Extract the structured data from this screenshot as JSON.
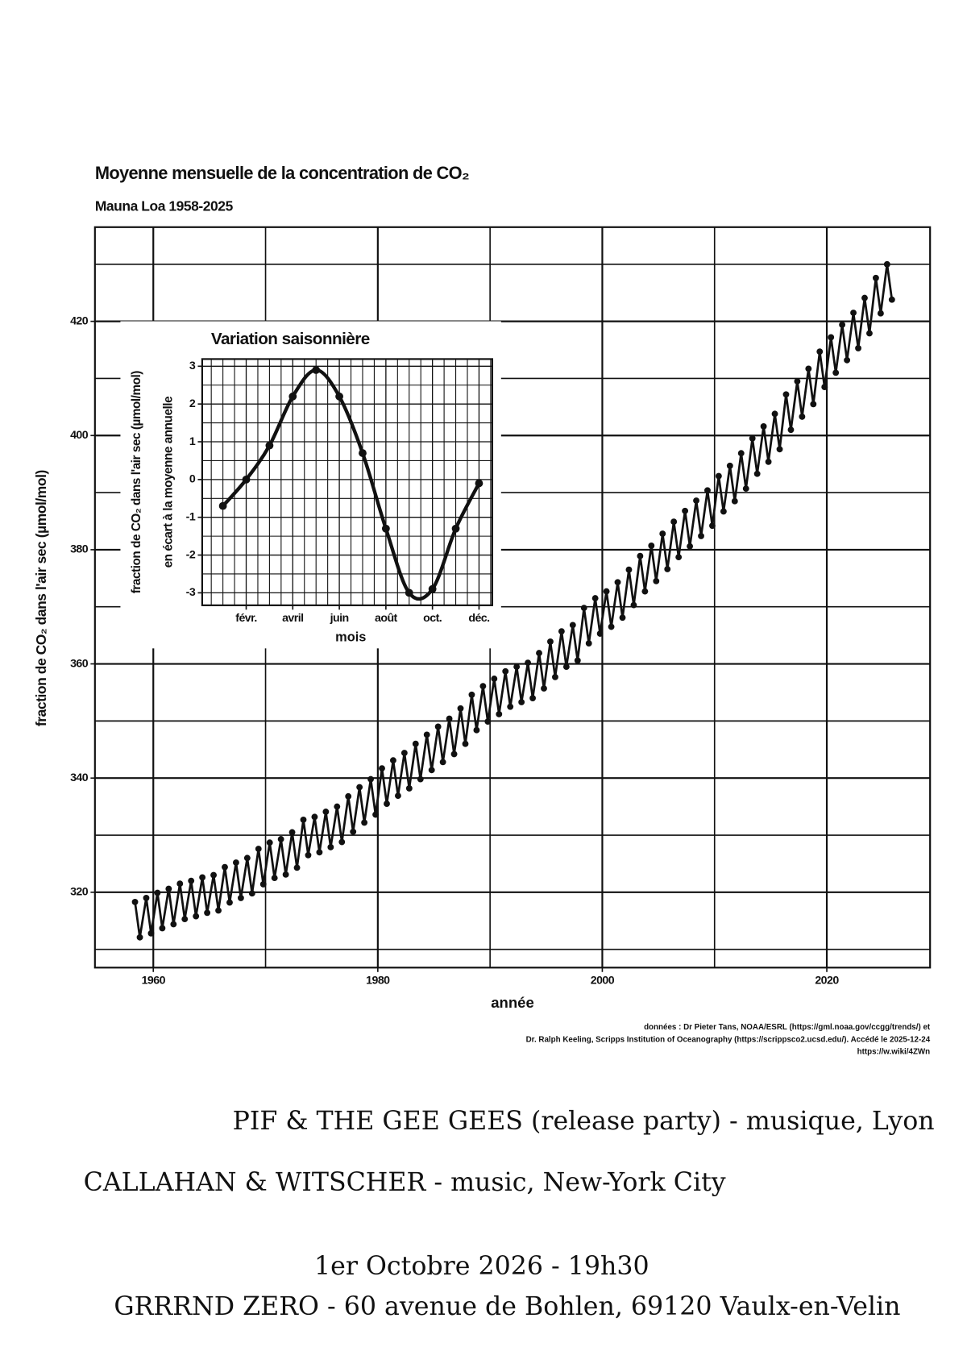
{
  "chart_data": [
    {
      "type": "line",
      "title": "Moyenne mensuelle de la concentration de CO₂",
      "subtitle": "Mauna Loa 1958-2025",
      "x_label": "année",
      "y_label": "fraction de CO₂ dans l'air sec (µmol/mol)",
      "source": [
        "données : Dr Pieter Tans, NOAA/ESRL (https://gml.noaa.gov/ccgg/trends/) et",
        "Dr. Ralph Keeling, Scripps Institution of Oceanography (https://scrippsco2.ucsd.edu/). Accédé le 2025-12-24",
        "https://w.wiki/4ZWn"
      ],
      "xlim": [
        1954.8,
        2029.2
      ],
      "ylim": [
        306.8,
        436.5
      ],
      "xticks": [
        1960,
        1980,
        2000,
        2020
      ],
      "yticks": [
        320,
        340,
        360,
        380,
        400,
        420
      ],
      "xminor": [
        1970,
        1990,
        2010
      ],
      "yminor": [
        310,
        330,
        350,
        370,
        390,
        410,
        430
      ],
      "grid": true,
      "markers": true,
      "series": [
        {
          "color": "#111111",
          "x": [
            1958.37,
            1958.8,
            1959.37,
            1959.8,
            1960.37,
            1960.8,
            1961.37,
            1961.8,
            1962.37,
            1962.8,
            1963.37,
            1963.8,
            1964.37,
            1964.8,
            1965.37,
            1965.8,
            1966.37,
            1966.8,
            1967.37,
            1967.8,
            1968.37,
            1968.8,
            1969.37,
            1969.8,
            1970.37,
            1970.8,
            1971.37,
            1971.8,
            1972.37,
            1972.8,
            1973.37,
            1973.8,
            1974.37,
            1974.8,
            1975.37,
            1975.8,
            1976.37,
            1976.8,
            1977.37,
            1977.8,
            1978.37,
            1978.8,
            1979.37,
            1979.8,
            1980.37,
            1980.8,
            1981.37,
            1981.8,
            1982.37,
            1982.8,
            1983.37,
            1983.8,
            1984.37,
            1984.8,
            1985.37,
            1985.8,
            1986.37,
            1986.8,
            1987.37,
            1987.8,
            1988.37,
            1988.8,
            1989.37,
            1989.8,
            1990.37,
            1990.8,
            1991.37,
            1991.8,
            1992.37,
            1992.8,
            1993.37,
            1993.8,
            1994.37,
            1994.8,
            1995.37,
            1995.8,
            1996.37,
            1996.8,
            1997.37,
            1997.8,
            1998.37,
            1998.8,
            1999.37,
            1999.8,
            2000.37,
            2000.8,
            2001.37,
            2001.8,
            2002.37,
            2002.8,
            2003.37,
            2003.8,
            2004.37,
            2004.8,
            2005.37,
            2005.8,
            2006.37,
            2006.8,
            2007.37,
            2007.8,
            2008.37,
            2008.8,
            2009.37,
            2009.8,
            2010.37,
            2010.8,
            2011.37,
            2011.8,
            2012.37,
            2012.8,
            2013.37,
            2013.8,
            2014.37,
            2014.8,
            2015.37,
            2015.8,
            2016.37,
            2016.8,
            2017.37,
            2017.8,
            2018.37,
            2018.8,
            2019.37,
            2019.8,
            2020.37,
            2020.8,
            2021.37,
            2021.8,
            2022.37,
            2022.8,
            2023.37,
            2023.8,
            2024.37,
            2024.8,
            2025.37,
            2025.8
          ],
          "values": [
            318.3,
            312.1,
            319.0,
            312.8,
            319.9,
            313.7,
            320.6,
            314.4,
            321.5,
            315.3,
            322.0,
            315.8,
            322.6,
            316.4,
            323.0,
            316.8,
            324.4,
            318.2,
            325.2,
            319.0,
            326.0,
            319.8,
            327.6,
            321.4,
            328.7,
            322.5,
            329.3,
            323.1,
            330.5,
            324.3,
            332.7,
            326.5,
            333.2,
            327.0,
            334.1,
            327.9,
            335.0,
            328.8,
            336.8,
            330.6,
            338.4,
            332.2,
            339.8,
            333.6,
            341.7,
            335.5,
            343.1,
            336.9,
            344.4,
            338.2,
            346.0,
            339.8,
            347.6,
            341.4,
            349.0,
            342.8,
            350.4,
            344.2,
            352.2,
            346.0,
            354.6,
            348.4,
            356.1,
            349.9,
            357.4,
            351.2,
            358.7,
            352.5,
            359.5,
            353.3,
            360.2,
            354.0,
            361.9,
            355.7,
            363.9,
            357.7,
            365.7,
            359.5,
            366.8,
            360.6,
            369.8,
            363.6,
            371.5,
            365.3,
            372.7,
            366.5,
            374.3,
            368.1,
            376.5,
            370.3,
            378.9,
            372.7,
            380.7,
            374.5,
            382.8,
            376.6,
            384.9,
            378.7,
            386.8,
            380.6,
            388.6,
            382.4,
            390.4,
            384.2,
            392.9,
            386.7,
            394.7,
            388.5,
            396.9,
            390.7,
            399.5,
            393.3,
            401.6,
            395.4,
            403.8,
            397.6,
            407.2,
            401.0,
            409.5,
            403.3,
            411.7,
            405.5,
            414.7,
            408.5,
            417.2,
            411.0,
            419.4,
            413.2,
            421.5,
            415.3,
            424.1,
            417.9,
            427.6,
            421.4,
            430.0,
            423.8
          ]
        }
      ]
    },
    {
      "type": "line",
      "title": "Variation saisonnière",
      "x_label": "mois",
      "y_label": [
        "fraction de CO₂ dans l'air sec (µmol/mol)",
        "en écart à la moyenne annuelle"
      ],
      "xlim": [
        0.11,
        12.57
      ],
      "ylim": [
        -3.33,
        3.19
      ],
      "xticks": [
        {
          "value": 2,
          "label": "févr."
        },
        {
          "value": 4,
          "label": "avril"
        },
        {
          "value": 6,
          "label": "juin"
        },
        {
          "value": 8,
          "label": "août"
        },
        {
          "value": 10,
          "label": "oct."
        },
        {
          "value": 12,
          "label": "déc."
        }
      ],
      "yticks": [
        -3,
        -2,
        -1,
        0,
        1,
        2,
        3
      ],
      "xminor": [
        0.5,
        1,
        1.5,
        2.5,
        3,
        3.5,
        4.5,
        5,
        5.5,
        6.5,
        7,
        7.5,
        8.5,
        9,
        9.5,
        10.5,
        11,
        11.5,
        12.5
      ],
      "yminor": [
        -2.5,
        -1.5,
        -0.5,
        0.5,
        1.5,
        2.5
      ],
      "grid": true,
      "markers": true,
      "smooth": true,
      "series": [
        {
          "color": "#111111",
          "x": [
            1,
            2,
            3,
            4,
            5,
            6,
            7,
            8,
            9,
            10,
            11,
            12
          ],
          "values": [
            -0.7,
            0.0,
            0.9,
            2.2,
            2.9,
            2.2,
            0.7,
            -1.3,
            -3.0,
            -2.9,
            -1.3,
            -0.1
          ]
        }
      ]
    }
  ],
  "poster": {
    "lines": [
      "PIF & THE GEE GEES (release party) - musique, Lyon",
      "CALLAHAN & WITSCHER - music, New-York City",
      "1er Octobre 2026 - 19h30",
      "GRRRND ZERO - 60 avenue de Bohlen, 69120 Vaulx-en-Velin"
    ]
  }
}
